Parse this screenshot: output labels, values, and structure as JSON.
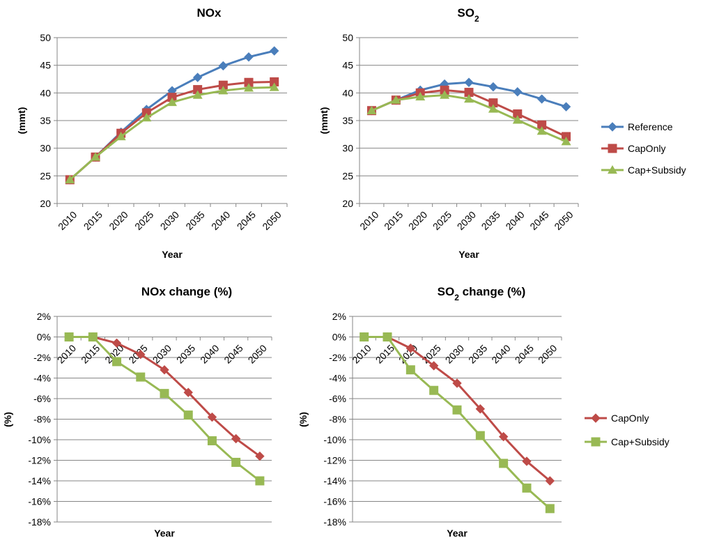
{
  "chart_data": [
    {
      "type": "line",
      "title": "NOx",
      "xlabel": "Year",
      "ylabel": "(mmt)",
      "categories": [
        "2010",
        "2015",
        "2020",
        "2025",
        "2030",
        "2035",
        "2040",
        "2045",
        "2050"
      ],
      "ylim": [
        20,
        50
      ],
      "yticks": [
        20,
        25,
        30,
        35,
        40,
        45,
        50
      ],
      "grid": true,
      "legend": "none",
      "series": [
        {
          "name": "Reference",
          "color": "#4a7ebb",
          "marker": "diamond",
          "values": [
            24.3,
            28.4,
            32.9,
            37.0,
            40.4,
            42.8,
            44.9,
            46.5,
            47.6
          ]
        },
        {
          "name": "CapOnly",
          "color": "#be4b48",
          "marker": "square",
          "values": [
            24.3,
            28.4,
            32.7,
            36.4,
            39.2,
            40.6,
            41.4,
            41.9,
            42.0
          ]
        },
        {
          "name": "Cap+Subsidy",
          "color": "#98b954",
          "marker": "triangle",
          "values": [
            24.3,
            28.4,
            32.1,
            35.5,
            38.3,
            39.6,
            40.4,
            40.9,
            41.0
          ]
        }
      ]
    },
    {
      "type": "line",
      "title": "SO",
      "title_sub": "2",
      "xlabel": "Year",
      "ylabel": "(mmt)",
      "categories": [
        "2010",
        "2015",
        "2020",
        "2025",
        "2030",
        "2035",
        "2040",
        "2045",
        "2050"
      ],
      "ylim": [
        20,
        50
      ],
      "yticks": [
        20,
        25,
        30,
        35,
        40,
        45,
        50
      ],
      "grid": true,
      "legend": "right",
      "series": [
        {
          "name": "Reference",
          "color": "#4a7ebb",
          "marker": "diamond",
          "values": [
            36.8,
            38.7,
            40.5,
            41.6,
            41.9,
            41.1,
            40.2,
            38.9,
            37.5
          ]
        },
        {
          "name": "CapOnly",
          "color": "#be4b48",
          "marker": "square",
          "values": [
            36.8,
            38.7,
            40.0,
            40.5,
            40.1,
            38.2,
            36.2,
            34.2,
            32.1
          ]
        },
        {
          "name": "Cap+Subsidy",
          "color": "#98b954",
          "marker": "triangle",
          "values": [
            36.8,
            38.7,
            39.3,
            39.6,
            38.9,
            37.1,
            35.1,
            33.1,
            31.2
          ]
        }
      ]
    },
    {
      "type": "line",
      "title": "NOx change (%)",
      "xlabel": "Year",
      "ylabel": "(%)",
      "categories": [
        "2010",
        "2015",
        "2020",
        "2025",
        "2030",
        "2035",
        "2040",
        "2045",
        "2050"
      ],
      "ylim": [
        -18,
        2
      ],
      "yticks": [
        -18,
        -16,
        -14,
        -12,
        -10,
        -8,
        -6,
        -4,
        -2,
        0,
        2
      ],
      "ytick_suffix": "%",
      "grid": true,
      "legend": "none",
      "series": [
        {
          "name": "CapOnly",
          "color": "#be4b48",
          "marker": "diamond",
          "values": [
            0.0,
            0.0,
            -0.6,
            -1.7,
            -3.2,
            -5.4,
            -7.8,
            -9.9,
            -11.6
          ]
        },
        {
          "name": "Cap+Subsidy",
          "color": "#98b954",
          "marker": "square",
          "values": [
            0.0,
            0.0,
            -2.4,
            -3.9,
            -5.5,
            -7.6,
            -10.1,
            -12.2,
            -14.0
          ]
        }
      ]
    },
    {
      "type": "line",
      "title": "SO",
      "title_sub": "2",
      "title_rest": " change (%)",
      "xlabel": "Year",
      "ylabel": "(%)",
      "categories": [
        "2010",
        "2015",
        "2020",
        "2025",
        "2030",
        "2035",
        "2040",
        "2045",
        "2050"
      ],
      "ylim": [
        -18,
        2
      ],
      "yticks": [
        -18,
        -16,
        -14,
        -12,
        -10,
        -8,
        -6,
        -4,
        -2,
        0,
        2
      ],
      "ytick_suffix": "%",
      "grid": true,
      "legend": "right",
      "series": [
        {
          "name": "CapOnly",
          "color": "#be4b48",
          "marker": "diamond",
          "values": [
            0.0,
            0.0,
            -1.1,
            -2.8,
            -4.5,
            -7.0,
            -9.7,
            -12.1,
            -14.0
          ]
        },
        {
          "name": "Cap+Subsidy",
          "color": "#98b954",
          "marker": "square",
          "values": [
            0.0,
            0.0,
            -3.2,
            -5.2,
            -7.1,
            -9.6,
            -12.3,
            -14.7,
            -16.7
          ]
        }
      ]
    }
  ]
}
